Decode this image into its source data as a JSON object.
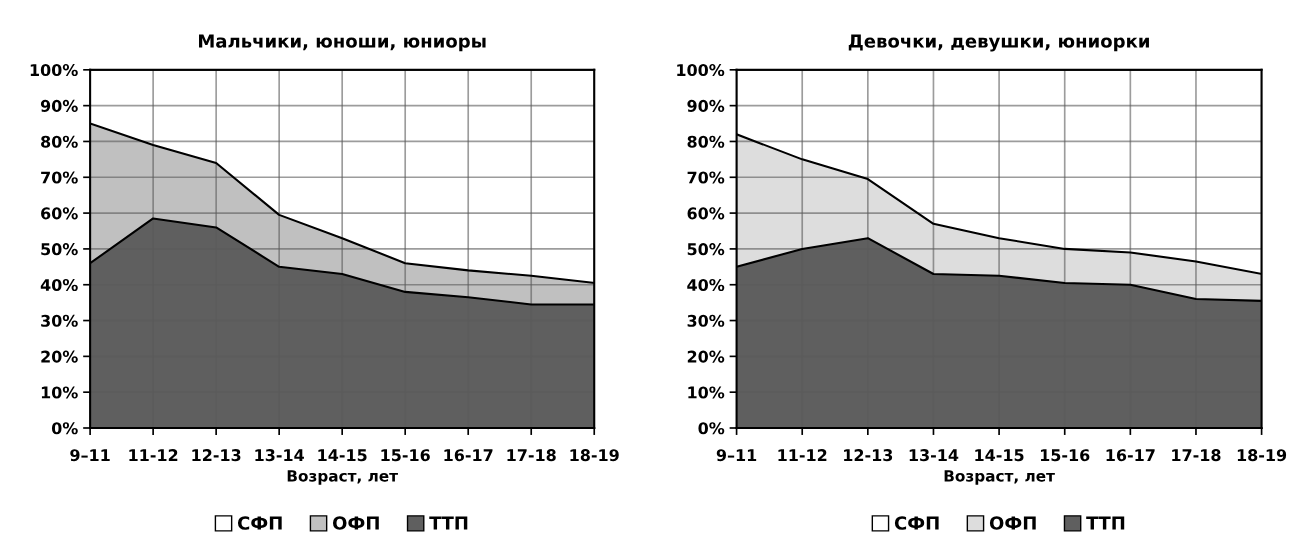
{
  "chart_data": [
    {
      "type": "area",
      "stacked": true,
      "title": "Мальчики, юноши, юниоры",
      "xlabel": "Возраст, лет",
      "categories": [
        "9–11",
        "11-12",
        "12-13",
        "13-14",
        "14-15",
        "15-16",
        "16-17",
        "17-18",
        "18-19"
      ],
      "series": [
        {
          "name": "ТТП",
          "color": "#5f5f5f",
          "values": [
            46,
            58.5,
            56,
            45,
            43,
            38,
            36.5,
            34.5,
            34.5
          ]
        },
        {
          "name": "ОФП",
          "color": "#c0c0c0",
          "values": [
            39,
            20.5,
            18,
            14.5,
            10,
            8,
            7.5,
            8,
            6
          ]
        },
        {
          "name": "СФП",
          "color": "#ffffff",
          "values": [
            15,
            21,
            26,
            40.5,
            47,
            54,
            56,
            57.5,
            59.5
          ]
        }
      ],
      "ylim": [
        0,
        100
      ],
      "yticks": [
        {
          "value": 0,
          "label": "0%"
        },
        {
          "value": 10,
          "label": "10%"
        },
        {
          "value": 20,
          "label": "20%"
        },
        {
          "value": 30,
          "label": "30%"
        },
        {
          "value": 40,
          "label": "40%"
        },
        {
          "value": 50,
          "label": "50%"
        },
        {
          "value": 60,
          "label": "60%"
        },
        {
          "value": 70,
          "label": "70%"
        },
        {
          "value": 80,
          "label": "80%"
        },
        {
          "value": 90,
          "label": "90%"
        },
        {
          "value": 100,
          "label": "100%"
        }
      ],
      "grid": true,
      "legend": "bottom"
    },
    {
      "type": "area",
      "stacked": true,
      "title": "Девочки, девушки, юниорки",
      "xlabel": "Возраст, лет",
      "categories": [
        "9–11",
        "11-12",
        "12-13",
        "13-14",
        "14-15",
        "15-16",
        "16-17",
        "17-18",
        "18-19"
      ],
      "series": [
        {
          "name": "ТТП",
          "color": "#5f5f5f",
          "values": [
            45,
            50,
            53,
            43,
            42.5,
            40.5,
            40,
            36,
            35.5
          ]
        },
        {
          "name": "ОФП",
          "color": "#dddddd",
          "values": [
            37,
            25,
            16.5,
            14,
            10.5,
            9.5,
            9,
            10.5,
            7.5
          ]
        },
        {
          "name": "СФП",
          "color": "#ffffff",
          "values": [
            18,
            25,
            30.5,
            43,
            47,
            50,
            51,
            53.5,
            57
          ]
        }
      ],
      "ylim": [
        0,
        100
      ],
      "yticks": [
        {
          "value": 0,
          "label": "0%"
        },
        {
          "value": 10,
          "label": "10%"
        },
        {
          "value": 20,
          "label": "20%"
        },
        {
          "value": 30,
          "label": "30%"
        },
        {
          "value": 40,
          "label": "40%"
        },
        {
          "value": 50,
          "label": "50%"
        },
        {
          "value": 60,
          "label": "60%"
        },
        {
          "value": 70,
          "label": "70%"
        },
        {
          "value": 80,
          "label": "80%"
        },
        {
          "value": 90,
          "label": "90%"
        },
        {
          "value": 100,
          "label": "100%"
        }
      ],
      "grid": true,
      "legend": "bottom"
    }
  ]
}
